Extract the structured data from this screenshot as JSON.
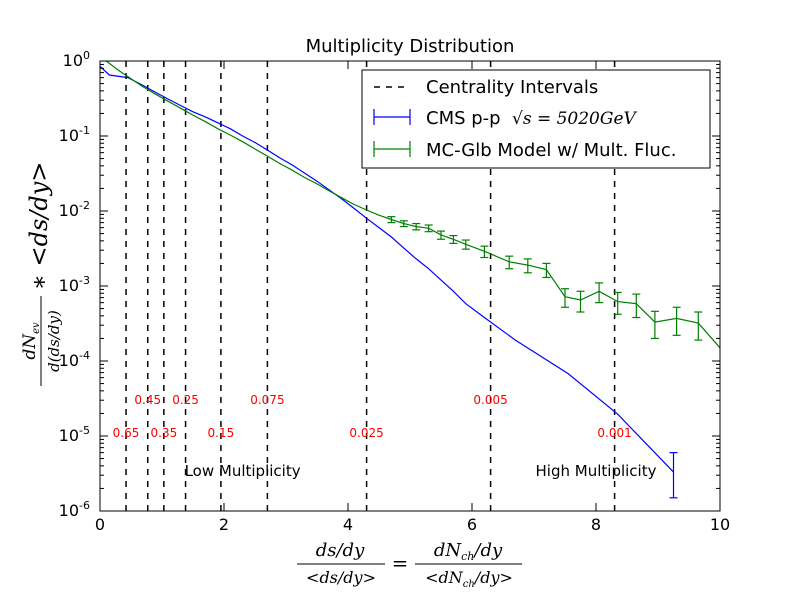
{
  "chart_data": {
    "type": "line",
    "title": "Multiplicity Distribution",
    "xlabel": "ds/dy / <ds/dy> = dN_ch/dy / <dN_ch/dy>",
    "ylabel": "dN_ev / d(ds/dy) * <ds/dy>",
    "xlim": [
      0,
      10
    ],
    "ylim": [
      1e-06,
      1
    ],
    "y_scale": "log",
    "grid": false,
    "legend_position": "top-right",
    "x_ticks": [
      0,
      2,
      4,
      6,
      8,
      10
    ],
    "x_tick_labels": [
      "0",
      "2",
      "4",
      "6",
      "8",
      "10"
    ],
    "y_ticks": [
      1e-06,
      1e-05,
      0.0001,
      0.001,
      0.01,
      0.1,
      1
    ],
    "y_tick_labels": [
      {
        "base": "10",
        "exp": "-6"
      },
      {
        "base": "10",
        "exp": "-5"
      },
      {
        "base": "10",
        "exp": "-4"
      },
      {
        "base": "10",
        "exp": "-3"
      },
      {
        "base": "10",
        "exp": "-2"
      },
      {
        "base": "10",
        "exp": "-1"
      },
      {
        "base": "10",
        "exp": "0"
      }
    ],
    "series": [
      {
        "name": "CMS p-p √s = 5020GeV",
        "legend_text": "CMS p-p",
        "legend_math": "√s = 5020GeV",
        "color": "#0000ff",
        "x": [
          0.0,
          0.15,
          0.45,
          0.7,
          0.9,
          1.1,
          1.3,
          1.5,
          1.7,
          1.9,
          2.1,
          2.3,
          2.5,
          2.7,
          2.9,
          3.1,
          3.3,
          3.5,
          3.7,
          3.9,
          4.1,
          4.3,
          4.5,
          4.7,
          4.9,
          5.1,
          5.3,
          5.5,
          5.7,
          5.9,
          6.2,
          6.7,
          7.55,
          8.35,
          9.25
        ],
        "y": [
          0.85,
          0.65,
          0.6,
          0.47,
          0.38,
          0.31,
          0.255,
          0.21,
          0.18,
          0.15,
          0.125,
          0.1,
          0.082,
          0.065,
          0.051,
          0.041,
          0.032,
          0.025,
          0.019,
          0.0145,
          0.0108,
          0.008,
          0.006,
          0.0045,
          0.0032,
          0.0023,
          0.0017,
          0.0012,
          0.00085,
          0.00058,
          0.00038,
          0.00019,
          6.8e-05,
          1.95e-05,
          3.3e-06
        ],
        "error_low": [
          0,
          0,
          0,
          0,
          0,
          0,
          0,
          0,
          0,
          0,
          0,
          0,
          0,
          0,
          0,
          0,
          0,
          0,
          0,
          0,
          0,
          0,
          0,
          0,
          0,
          0,
          0,
          0,
          0,
          0,
          0,
          0,
          0,
          0,
          1.8e-06
        ],
        "error_high": [
          0,
          0,
          0,
          0,
          0,
          0,
          0,
          0,
          0,
          0,
          0,
          0,
          0,
          0,
          0,
          0,
          0,
          0,
          0,
          0,
          0,
          0,
          0,
          0,
          0,
          0,
          0,
          0,
          0,
          0,
          0,
          0,
          0,
          0,
          2.7e-06
        ]
      },
      {
        "name": "MC-Glb Model w/ Mult. Fluc.",
        "legend_text": "MC-Glb Model w/ Mult. Fluc.",
        "color": "#008000",
        "x": [
          0.1,
          0.3,
          0.5,
          0.7,
          0.9,
          1.1,
          1.3,
          1.5,
          1.7,
          1.9,
          2.1,
          2.3,
          2.5,
          2.7,
          2.9,
          3.1,
          3.3,
          3.5,
          3.7,
          3.9,
          4.1,
          4.3,
          4.5,
          4.7,
          4.9,
          5.1,
          5.3,
          5.5,
          5.7,
          5.9,
          6.2,
          6.6,
          6.9,
          7.2,
          7.5,
          7.75,
          8.05,
          8.35,
          8.65,
          8.95,
          9.3,
          9.65,
          10.0
        ],
        "y": [
          1.0,
          0.75,
          0.58,
          0.45,
          0.36,
          0.29,
          0.235,
          0.19,
          0.155,
          0.125,
          0.103,
          0.084,
          0.067,
          0.054,
          0.043,
          0.035,
          0.028,
          0.023,
          0.0185,
          0.015,
          0.0122,
          0.0103,
          0.0088,
          0.0077,
          0.0068,
          0.0062,
          0.0059,
          0.0048,
          0.0042,
          0.0036,
          0.0029,
          0.0021,
          0.0019,
          0.00165,
          0.00072,
          0.00065,
          0.00085,
          0.00062,
          0.00058,
          0.00033,
          0.00037,
          0.00032,
          0.00015
        ],
        "error_low": [
          0,
          0,
          0,
          0,
          0,
          0,
          0,
          0,
          0,
          0,
          0,
          0,
          0,
          0,
          0,
          0,
          0,
          0,
          0,
          0,
          0,
          0,
          0,
          0.0007,
          0.0006,
          0.0006,
          0.0006,
          0.0006,
          0.0005,
          0.0005,
          0.0005,
          0.0004,
          0.0004,
          0.00035,
          0.0002,
          0.0002,
          0.00025,
          0.0002,
          0.0002,
          0.00013,
          0.00015,
          0.00013,
          0
        ],
        "error_high": [
          0,
          0,
          0,
          0,
          0,
          0,
          0,
          0,
          0,
          0,
          0,
          0,
          0,
          0,
          0,
          0,
          0,
          0,
          0,
          0,
          0,
          0,
          0,
          0.0007,
          0.0006,
          0.0006,
          0.0006,
          0.0006,
          0.0005,
          0.0005,
          0.0005,
          0.0004,
          0.0004,
          0.00035,
          0.0002,
          0.0002,
          0.00025,
          0.0002,
          0.0002,
          0.00013,
          0.00015,
          0.00013,
          0
        ]
      }
    ],
    "centrality": {
      "legend_text": "Centrality Intervals",
      "color": "#000000",
      "lines": [
        {
          "x": 0.42,
          "label": "0.65",
          "row": "low"
        },
        {
          "x": 0.77,
          "label": "0.45",
          "row": "high"
        },
        {
          "x": 1.03,
          "label": "0.35",
          "row": "low"
        },
        {
          "x": 1.38,
          "label": "0.25",
          "row": "high"
        },
        {
          "x": 1.95,
          "label": "0.15",
          "row": "low"
        },
        {
          "x": 2.7,
          "label": "0.075",
          "row": "high"
        },
        {
          "x": 4.3,
          "label": "0.025",
          "row": "low"
        },
        {
          "x": 6.3,
          "label": "0.005",
          "row": "high"
        },
        {
          "x": 8.3,
          "label": "0.001",
          "row": "low"
        }
      ],
      "label_y": {
        "high": 3e-05,
        "low": 1.1e-05
      }
    },
    "annotations": [
      {
        "text": "Low Multiplicity",
        "x": 2.3,
        "y": 3.4e-06,
        "align": "middle"
      },
      {
        "text": "High Multiplicity",
        "x": 8.0,
        "y": 3.4e-06,
        "align": "middle"
      }
    ]
  }
}
